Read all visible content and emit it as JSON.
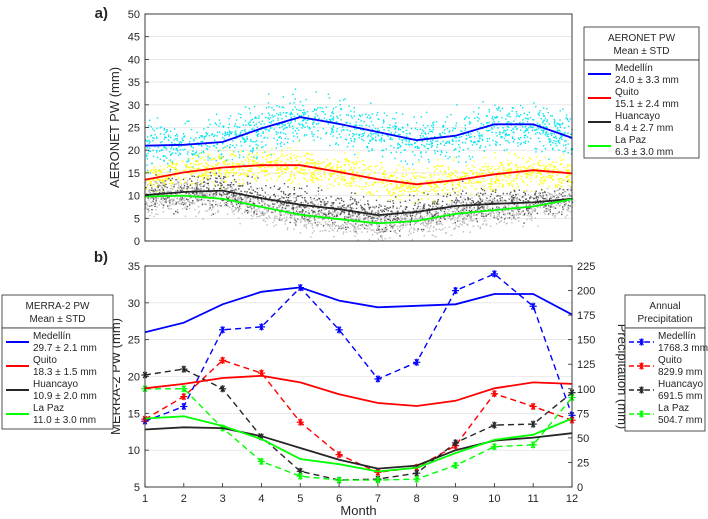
{
  "chart_data": [
    {
      "panel": "a)",
      "type": "line",
      "ylabel": "AERONET PW (mm)",
      "xlabel": "",
      "xlim": [
        1,
        12
      ],
      "ylim": [
        0,
        50
      ],
      "y_ticks": [
        0,
        5,
        10,
        15,
        20,
        25,
        30,
        35,
        40,
        45,
        50
      ],
      "legend_title": [
        "AERONET PW",
        "Mean ± STD"
      ],
      "legend_position": "right-outside",
      "scatter_note": "daily observations drawn as dense dots behind the monthly mean lines",
      "series": [
        {
          "name": "Medellín",
          "stat": "24.0 ± 3.3 mm",
          "color": "#0000ff",
          "scatter_color": "#00e5ee",
          "x": [
            1,
            2,
            3,
            4,
            5,
            6,
            7,
            8,
            9,
            10,
            11,
            12
          ],
          "values": [
            21.0,
            21.2,
            21.8,
            24.8,
            27.3,
            25.8,
            24.0,
            22.2,
            23.2,
            25.7,
            25.7,
            22.7
          ]
        },
        {
          "name": "Quito",
          "stat": "15.1 ± 2.4 mm",
          "color": "#ff0000",
          "scatter_color": "#ffff00",
          "x": [
            1,
            2,
            3,
            4,
            5,
            6,
            7,
            8,
            9,
            10,
            11,
            12
          ],
          "values": [
            13.5,
            15.1,
            16.2,
            16.7,
            16.7,
            15.2,
            13.6,
            12.5,
            13.4,
            14.7,
            15.6,
            14.9
          ]
        },
        {
          "name": "Huancayo",
          "stat": "8.4 ± 2.7 mm",
          "color": "#262626",
          "scatter_color": "#555555",
          "x": [
            1,
            2,
            3,
            4,
            5,
            6,
            7,
            8,
            9,
            10,
            11,
            12
          ],
          "values": [
            10.1,
            10.8,
            11.1,
            9.4,
            8.0,
            7.0,
            5.7,
            6.4,
            7.7,
            8.2,
            8.5,
            9.3
          ]
        },
        {
          "name": "La Paz",
          "stat": "6.3 ± 3.0 mm",
          "color": "#00ff00",
          "scatter_color": "#bebebe",
          "x": [
            1,
            2,
            3,
            4,
            5,
            6,
            7,
            8,
            9,
            10,
            11,
            12
          ],
          "values": [
            9.8,
            10.0,
            9.3,
            7.5,
            5.8,
            4.8,
            3.9,
            4.4,
            6.0,
            6.8,
            7.6,
            9.2
          ]
        }
      ]
    },
    {
      "panel": "b)",
      "type": "line",
      "xlabel": "Month",
      "ylabel": "MERRA-2 PW (mm)",
      "y2label": "Precipitation (mm)",
      "x_ticks": [
        1,
        2,
        3,
        4,
        5,
        6,
        7,
        8,
        9,
        10,
        11,
        12
      ],
      "xlim": [
        1,
        12
      ],
      "ylim": [
        5,
        35
      ],
      "y_ticks": [
        5,
        10,
        15,
        20,
        25,
        30,
        35
      ],
      "y2lim": [
        0,
        225
      ],
      "y2_ticks": [
        0,
        25,
        50,
        75,
        100,
        125,
        150,
        175,
        200,
        225
      ],
      "legend_title": [
        "MERRA-2 PW",
        "Mean ± STD"
      ],
      "legend_position": "left-outside",
      "legend2_title": [
        "Annual",
        "Precipitation"
      ],
      "legend2_position": "right-outside",
      "series": [
        {
          "name": "Medellín",
          "stat": "29.7 ± 2.1 mm",
          "color": "#0000ff",
          "values": [
            26.0,
            27.3,
            29.8,
            31.5,
            32.1,
            30.3,
            29.4,
            29.6,
            29.8,
            31.2,
            31.2,
            28.4
          ]
        },
        {
          "name": "Quito",
          "stat": "18.3 ± 1.5 mm",
          "color": "#ff0000",
          "values": [
            18.4,
            19.0,
            19.8,
            20.1,
            19.2,
            17.6,
            16.4,
            16.0,
            16.7,
            18.4,
            19.2,
            19.0
          ]
        },
        {
          "name": "Huancayo",
          "stat": "10.9 ± 2.0 mm",
          "color": "#262626",
          "values": [
            12.8,
            13.1,
            13.0,
            11.9,
            10.3,
            8.7,
            7.5,
            7.9,
            10.0,
            11.3,
            11.7,
            12.3
          ]
        },
        {
          "name": "La Paz",
          "stat": "11.0 ± 3.0 mm",
          "color": "#00ff00",
          "values": [
            14.3,
            14.6,
            13.3,
            11.5,
            8.8,
            8.1,
            7.1,
            7.6,
            9.6,
            11.4,
            12.1,
            14.3
          ]
        }
      ],
      "precip_series": [
        {
          "name": "Medellín",
          "stat": "1768.3 mm",
          "color": "#0000ff",
          "values": [
            67,
            82,
            160,
            163,
            203,
            160,
            110,
            127,
            200,
            217,
            184,
            73
          ]
        },
        {
          "name": "Quito",
          "stat": "829.9 mm",
          "color": "#ff0000",
          "values": [
            69,
            92,
            129,
            116,
            66,
            33,
            15,
            20,
            42,
            95,
            82,
            68
          ]
        },
        {
          "name": "Huancayo",
          "stat": "691.5 mm",
          "color": "#262626",
          "values": [
            114,
            120,
            100,
            51,
            16,
            7,
            8,
            14,
            45,
            63,
            64,
            96
          ]
        },
        {
          "name": "La Paz",
          "stat": "504.7 mm",
          "color": "#00ff00",
          "values": [
            100,
            100,
            60,
            26,
            11,
            7,
            7,
            8,
            22,
            41,
            43,
            91
          ]
        }
      ]
    }
  ]
}
